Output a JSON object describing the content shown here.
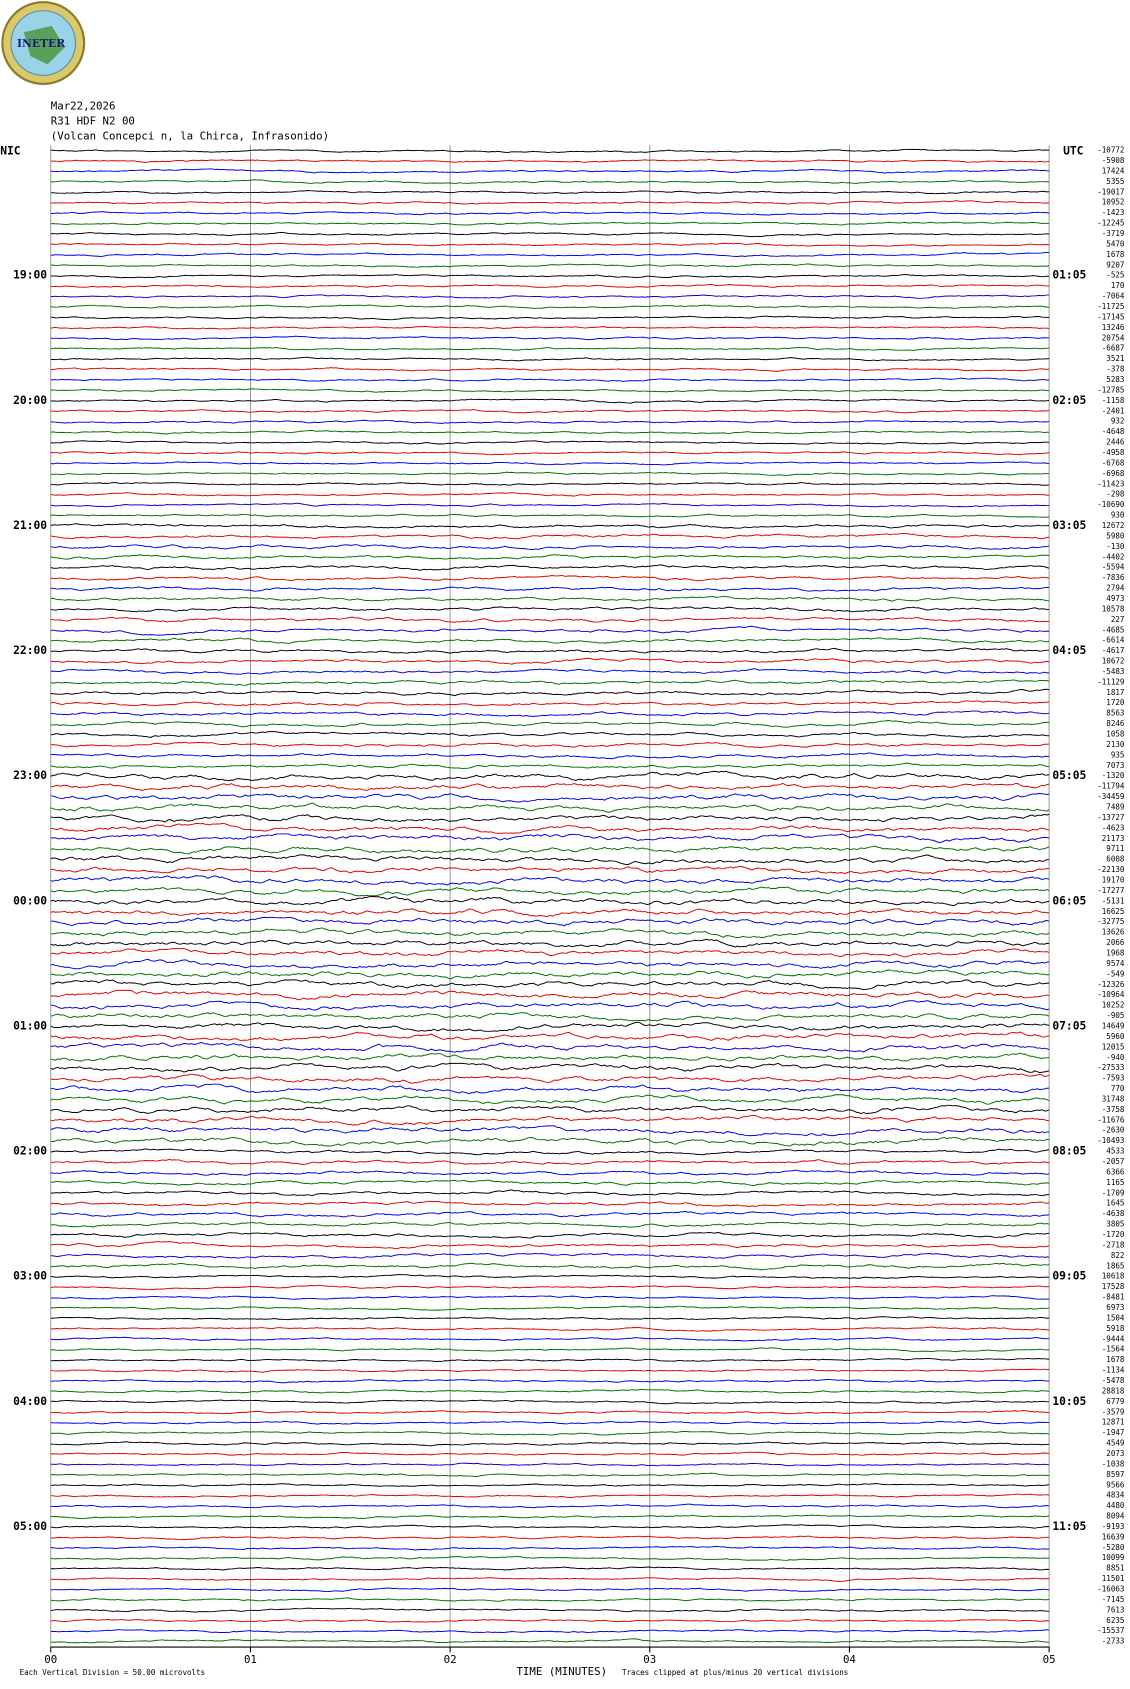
{
  "chart_data": {
    "type": "helicorder",
    "logo": "INETER",
    "title_lines": [
      "Mar22,2026",
      "R31 HDF N2 00",
      "(Volcan Concepci  n, la Chirca, Infrasonido)"
    ],
    "left_title": "NIC",
    "right_title": "UTC",
    "xlabel": "TIME (MINUTES)",
    "scale_note": "Each Vertical Division =   50.00 microvolts",
    "clip_note": "Traces clipped at plus/minus 20 vertical divisions",
    "xlim": [
      0,
      5
    ],
    "xticks": [
      {
        "value": 0,
        "label": "00"
      },
      {
        "value": 1,
        "label": "01"
      },
      {
        "value": 2,
        "label": "02"
      },
      {
        "value": 3,
        "label": "03"
      },
      {
        "value": 4,
        "label": "04"
      },
      {
        "value": 5,
        "label": "05"
      }
    ],
    "grid": true,
    "colors": [
      "#000000",
      "#e00000",
      "#0000e0",
      "#007000"
    ],
    "left_labels": [
      null,
      null,
      null,
      null,
      null,
      null,
      null,
      null,
      null,
      null,
      null,
      null,
      "19:00",
      null,
      null,
      null,
      null,
      null,
      null,
      null,
      null,
      null,
      null,
      null,
      "20:00",
      null,
      null,
      null,
      null,
      null,
      null,
      null,
      null,
      null,
      null,
      null,
      "21:00",
      null,
      null,
      null,
      null,
      null,
      null,
      null,
      null,
      null,
      null,
      null,
      "22:00",
      null,
      null,
      null,
      null,
      null,
      null,
      null,
      null,
      null,
      null,
      null,
      "23:00",
      null,
      null,
      null,
      null,
      null,
      null,
      null,
      null,
      null,
      null,
      null,
      "00:00",
      null,
      null,
      null,
      null,
      null,
      null,
      null,
      null,
      null,
      null,
      null,
      "01:00",
      null,
      null,
      null,
      null,
      null,
      null,
      null,
      null,
      null,
      null,
      null,
      "02:00",
      null,
      null,
      null,
      null,
      null,
      null,
      null,
      null,
      null,
      null,
      null,
      "03:00",
      null,
      null,
      null,
      null,
      null,
      null,
      null,
      null,
      null,
      null,
      null,
      "04:00",
      null,
      null,
      null,
      null,
      null,
      null,
      null,
      null,
      null,
      null,
      null,
      "05:00",
      null,
      null,
      null,
      null,
      null,
      null,
      null,
      null,
      null,
      null,
      null
    ],
    "right_labels": [
      null,
      null,
      null,
      null,
      null,
      null,
      null,
      null,
      null,
      null,
      null,
      null,
      "01:05",
      null,
      null,
      null,
      null,
      null,
      null,
      null,
      null,
      null,
      null,
      null,
      "02:05",
      null,
      null,
      null,
      null,
      null,
      null,
      null,
      null,
      null,
      null,
      null,
      "03:05",
      null,
      null,
      null,
      null,
      null,
      null,
      null,
      null,
      null,
      null,
      null,
      "04:05",
      null,
      null,
      null,
      null,
      null,
      null,
      null,
      null,
      null,
      null,
      null,
      "05:05",
      null,
      null,
      null,
      null,
      null,
      null,
      null,
      null,
      null,
      null,
      null,
      "06:05",
      null,
      null,
      null,
      null,
      null,
      null,
      null,
      null,
      null,
      null,
      null,
      "07:05",
      null,
      null,
      null,
      null,
      null,
      null,
      null,
      null,
      null,
      null,
      null,
      "08:05",
      null,
      null,
      null,
      null,
      null,
      null,
      null,
      null,
      null,
      null,
      null,
      "09:05",
      null,
      null,
      null,
      null,
      null,
      null,
      null,
      null,
      null,
      null,
      null,
      "10:05",
      null,
      null,
      null,
      null,
      null,
      null,
      null,
      null,
      null,
      null,
      null,
      "11:05",
      null,
      null,
      null,
      null,
      null,
      null,
      null,
      null,
      null,
      null,
      null
    ],
    "trace_offsets": [
      -10772,
      -5908,
      17424,
      5355,
      -19017,
      10952,
      -1423,
      -12245,
      -3719,
      5470,
      1678,
      9207,
      -525,
      170,
      -7064,
      -11725,
      -17145,
      13246,
      20754,
      -6687,
      3521,
      -378,
      5283,
      -12785,
      -1158,
      -2401,
      932,
      -4648,
      2446,
      -4958,
      -6768,
      -6968,
      -11423,
      -298,
      -10690,
      930,
      12672,
      5980,
      -130,
      -4402,
      -5594,
      -7836,
      2794,
      4973,
      10578,
      227,
      -4685,
      -6614,
      -4617,
      10672,
      -5483,
      -11129,
      1817,
      1720,
      8563,
      8246,
      1058,
      2130,
      935,
      7073,
      -1320,
      -11794,
      -34459,
      7489,
      -13727,
      -4623,
      21173,
      9711,
      6008,
      -22130,
      19170,
      -17277,
      -5131,
      16625,
      -32775,
      13626,
      2066,
      1968,
      9574,
      -549,
      -12326,
      -10964,
      10252,
      -905,
      14649,
      5960,
      12015,
      -940,
      -27533,
      -7593,
      770,
      31748,
      -3758,
      -11676,
      -2630,
      -10493,
      4533,
      -2057,
      6366,
      1165,
      -1709,
      1645,
      -4638,
      3805,
      -1720,
      -2718,
      822,
      1865,
      10618,
      17528,
      -8481,
      6973,
      1504,
      5918,
      -9444,
      -1564,
      1678,
      -1134,
      -5478,
      28818,
      6779,
      -3579,
      12871,
      -1947,
      4549,
      2073,
      -1038,
      8597,
      9566,
      4834,
      4480,
      8094,
      -9193,
      16639,
      -5280,
      10099,
      8851,
      11501,
      -16063,
      -7145,
      7613,
      6235,
      -15537,
      -2733
    ]
  }
}
